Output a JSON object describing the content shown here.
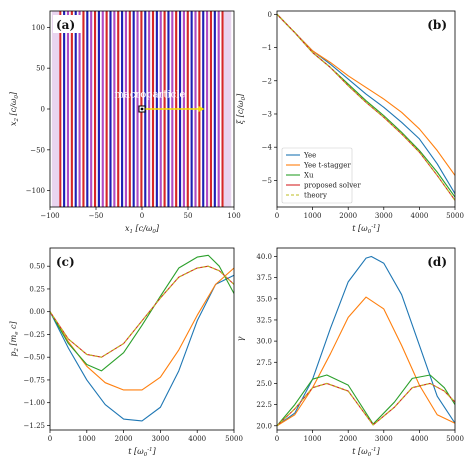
{
  "chart_data": [
    {
      "panel_label": "(a)",
      "type": "scatter",
      "xlabel": "x_1 [c/ω_0]",
      "ylabel": "x_2 [c/ω_0]",
      "xlim": [
        -100,
        100
      ],
      "ylim": [
        -120,
        120
      ],
      "xticks": [
        -100,
        -50,
        0,
        50,
        100
      ],
      "yticks": [
        -100,
        -50,
        0,
        50,
        100
      ],
      "background_stripes": {
        "x_start": -90,
        "x_end": 88,
        "spacing": 4.2,
        "colors": [
          "#d62728",
          "#1f1fb4",
          "#b04cc4"
        ]
      },
      "annotation": "macroparticle",
      "particle": {
        "x": 0,
        "y": 0
      },
      "arrow": {
        "x_from": 0,
        "x_to": 68,
        "y": 0,
        "color": "#f5e000"
      }
    },
    {
      "panel_label": "(b)",
      "type": "line",
      "xlabel": "t [ω_0^-1]",
      "ylabel": "ξ [c/ω_0]",
      "xlim": [
        0,
        5000
      ],
      "ylim": [
        -5.8,
        0.1
      ],
      "xticks": [
        0,
        1000,
        2000,
        3000,
        4000,
        5000
      ],
      "yticks": [
        0,
        -1,
        -2,
        -3,
        -4,
        -5
      ],
      "legend_position": "lower-left",
      "series": [
        {
          "name": "Yee",
          "color": "#1f77b4",
          "style": "solid",
          "x": [
            0,
            500,
            1000,
            1500,
            2000,
            2500,
            3000,
            3500,
            4000,
            4500,
            5000
          ],
          "y": [
            0,
            -0.55,
            -1.1,
            -1.5,
            -1.95,
            -2.4,
            -2.8,
            -3.25,
            -3.75,
            -4.5,
            -5.4
          ]
        },
        {
          "name": "Yee t-stagger",
          "color": "#ff7f0e",
          "style": "solid",
          "x": [
            0,
            500,
            1000,
            1500,
            2000,
            2500,
            3000,
            3500,
            4000,
            4500,
            5000
          ],
          "y": [
            0,
            -0.55,
            -1.1,
            -1.45,
            -1.85,
            -2.2,
            -2.55,
            -2.95,
            -3.45,
            -4.1,
            -4.85
          ]
        },
        {
          "name": "Xu",
          "color": "#2ca02c",
          "style": "solid",
          "x": [
            0,
            500,
            1000,
            1500,
            2000,
            2500,
            3000,
            3500,
            4000,
            4500,
            5000
          ],
          "y": [
            0,
            -0.55,
            -1.15,
            -1.6,
            -2.1,
            -2.6,
            -3.05,
            -3.55,
            -4.1,
            -4.75,
            -5.5
          ]
        },
        {
          "name": "proposed solver",
          "color": "#d62728",
          "style": "solid",
          "x": [
            0,
            500,
            1000,
            1500,
            2000,
            2500,
            3000,
            3500,
            4000,
            4500,
            5000
          ],
          "y": [
            0,
            -0.55,
            -1.15,
            -1.6,
            -2.15,
            -2.65,
            -3.1,
            -3.6,
            -4.15,
            -4.85,
            -5.6
          ]
        },
        {
          "name": "theory",
          "color": "#bcbd22",
          "style": "dashed",
          "x": [
            0,
            500,
            1000,
            1500,
            2000,
            2500,
            3000,
            3500,
            4000,
            4500,
            5000
          ],
          "y": [
            0,
            -0.55,
            -1.15,
            -1.6,
            -2.15,
            -2.65,
            -3.1,
            -3.6,
            -4.15,
            -4.85,
            -5.6
          ]
        }
      ]
    },
    {
      "panel_label": "(c)",
      "type": "line",
      "xlabel": "t [ω_0^-1]",
      "ylabel": "p_2 [m_e c]",
      "xlim": [
        0,
        5000
      ],
      "ylim": [
        -1.3,
        0.7
      ],
      "xticks": [
        0,
        1000,
        2000,
        3000,
        4000,
        5000
      ],
      "yticks": [
        0.5,
        0.25,
        0,
        -0.25,
        -0.5,
        -0.75,
        -1.0,
        -1.25
      ],
      "series": [
        {
          "color": "#1f77b4",
          "style": "solid",
          "x": [
            0,
            500,
            1000,
            1500,
            2000,
            2500,
            3000,
            3500,
            4000,
            4500,
            5000
          ],
          "y": [
            0,
            -0.4,
            -0.75,
            -1.02,
            -1.18,
            -1.2,
            -1.05,
            -0.65,
            -0.1,
            0.3,
            0.4
          ]
        },
        {
          "color": "#ff7f0e",
          "style": "solid",
          "x": [
            0,
            500,
            1000,
            1500,
            2000,
            2500,
            3000,
            3500,
            4000,
            4500,
            5000
          ],
          "y": [
            0,
            -0.33,
            -0.6,
            -0.78,
            -0.86,
            -0.86,
            -0.72,
            -0.42,
            -0.04,
            0.3,
            0.48
          ]
        },
        {
          "color": "#2ca02c",
          "style": "solid",
          "x": [
            0,
            500,
            1000,
            1400,
            2000,
            2500,
            3000,
            3500,
            4000,
            4300,
            4600,
            5000
          ],
          "y": [
            0,
            -0.35,
            -0.58,
            -0.65,
            -0.45,
            -0.15,
            0.17,
            0.48,
            0.6,
            0.62,
            0.5,
            0.2
          ]
        },
        {
          "color": "#d62728",
          "style": "solid",
          "x": [
            0,
            500,
            1000,
            1400,
            2000,
            2500,
            3000,
            3500,
            4000,
            4300,
            4600,
            5000
          ],
          "y": [
            0,
            -0.3,
            -0.47,
            -0.5,
            -0.35,
            -0.1,
            0.15,
            0.38,
            0.48,
            0.5,
            0.45,
            0.3
          ]
        },
        {
          "color": "#bcbd22",
          "style": "dashed",
          "x": [
            0,
            500,
            1000,
            1400,
            2000,
            2500,
            3000,
            3500,
            4000,
            4300,
            4600,
            5000
          ],
          "y": [
            0,
            -0.3,
            -0.47,
            -0.5,
            -0.35,
            -0.1,
            0.15,
            0.38,
            0.48,
            0.5,
            0.45,
            0.3
          ]
        }
      ]
    },
    {
      "panel_label": "(d)",
      "type": "line",
      "xlabel": "t [ω_0^-1]",
      "ylabel": "γ",
      "xlim": [
        0,
        5000
      ],
      "ylim": [
        19.5,
        41
      ],
      "xticks": [
        0,
        1000,
        2000,
        3000,
        4000,
        5000
      ],
      "yticks": [
        40.0,
        37.5,
        35.0,
        32.5,
        30.0,
        27.5,
        25.0,
        22.5,
        20.0
      ],
      "series": [
        {
          "color": "#1f77b4",
          "style": "solid",
          "x": [
            0,
            500,
            1000,
            1500,
            2000,
            2500,
            2650,
            3000,
            3500,
            4000,
            4500,
            5000
          ],
          "y": [
            20,
            21.5,
            25.5,
            31.5,
            37,
            39.8,
            40,
            39.2,
            35.5,
            29.5,
            23.5,
            20.3
          ]
        },
        {
          "color": "#ff7f0e",
          "style": "solid",
          "x": [
            0,
            500,
            1000,
            1500,
            2000,
            2500,
            3000,
            3500,
            4000,
            4500,
            5000
          ],
          "y": [
            20,
            21.3,
            24.5,
            28.5,
            32.8,
            35.2,
            33.8,
            29.5,
            24.8,
            21.3,
            20.3
          ]
        },
        {
          "color": "#2ca02c",
          "style": "solid",
          "x": [
            0,
            500,
            1000,
            1400,
            2000,
            2700,
            3300,
            3800,
            4300,
            4700,
            5000
          ],
          "y": [
            20,
            22.5,
            25.5,
            26,
            24.8,
            20.2,
            22.8,
            25.6,
            26,
            24.5,
            22.5
          ]
        },
        {
          "color": "#d62728",
          "style": "solid",
          "x": [
            0,
            500,
            1000,
            1400,
            2000,
            2700,
            3300,
            3800,
            4300,
            4700,
            5000
          ],
          "y": [
            20,
            22,
            24.5,
            25,
            24.1,
            20.1,
            22.2,
            24.5,
            25,
            24.1,
            22.8
          ]
        },
        {
          "color": "#bcbd22",
          "style": "dashed",
          "x": [
            0,
            500,
            1000,
            1400,
            2000,
            2700,
            3300,
            3800,
            4300,
            4700,
            5000
          ],
          "y": [
            20,
            22,
            24.5,
            25,
            24.1,
            20.1,
            22.2,
            24.5,
            25,
            24.1,
            22.8
          ]
        }
      ]
    }
  ]
}
